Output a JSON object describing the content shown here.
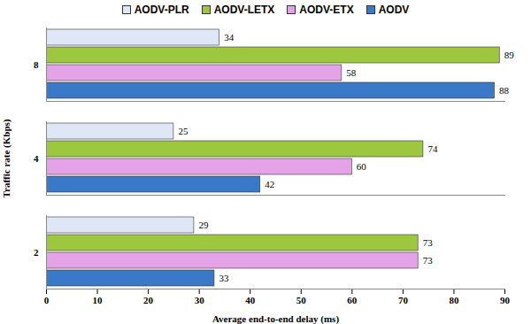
{
  "chart_data": {
    "type": "bar",
    "orientation": "horizontal",
    "x_label": "Average end-to-end delay (ms)",
    "y_label": "Traffic rate (Kbps)",
    "categories": [
      "2",
      "4",
      "8"
    ],
    "series": [
      {
        "name": "AODV-PLR",
        "color": "#dfe7f6",
        "values": [
          29,
          25,
          34
        ]
      },
      {
        "name": "AODV-LETX",
        "color": "#9cc73f",
        "values": [
          73,
          74,
          89
        ]
      },
      {
        "name": "AODV-ETX",
        "color": "#e3a3e6",
        "values": [
          73,
          60,
          58
        ]
      },
      {
        "name": "AODV",
        "color": "#3a78c8",
        "values": [
          33,
          42,
          88
        ]
      }
    ],
    "xlim": [
      0,
      90
    ],
    "xticks": [
      0,
      10,
      20,
      30,
      40,
      50,
      60,
      70,
      80,
      90
    ],
    "grid": false,
    "legend": "top",
    "data_labels": true
  }
}
